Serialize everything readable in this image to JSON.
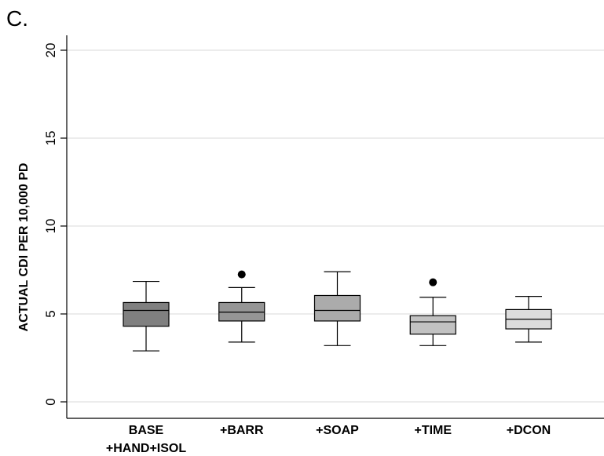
{
  "panel_label": "C.",
  "chart_data": {
    "type": "box",
    "ylabel": "ACTUAL CDI PER 10,000 PD",
    "xlabel": "",
    "ylim": [
      0,
      20
    ],
    "yticks": [
      0,
      5,
      10,
      15,
      20
    ],
    "grid": true,
    "categories": [
      [
        "BASE",
        "+HAND+ISOL"
      ],
      [
        "+BARR"
      ],
      [
        "+SOAP"
      ],
      [
        "+TIME"
      ],
      [
        "+DCON"
      ]
    ],
    "boxes": [
      {
        "whisker_low": 2.9,
        "q1": 4.3,
        "median": 5.2,
        "q3": 5.65,
        "whisker_high": 6.85,
        "outliers": [],
        "color": "#808080"
      },
      {
        "whisker_low": 3.4,
        "q1": 4.6,
        "median": 5.1,
        "q3": 5.65,
        "whisker_high": 6.5,
        "outliers": [
          7.25
        ],
        "color": "#959595"
      },
      {
        "whisker_low": 3.2,
        "q1": 4.6,
        "median": 5.2,
        "q3": 6.05,
        "whisker_high": 7.4,
        "outliers": [],
        "color": "#ababab"
      },
      {
        "whisker_low": 3.2,
        "q1": 3.85,
        "median": 4.55,
        "q3": 4.9,
        "whisker_high": 5.95,
        "outliers": [
          6.8
        ],
        "color": "#c2c2c2"
      },
      {
        "whisker_low": 3.4,
        "q1": 4.15,
        "median": 4.7,
        "q3": 5.25,
        "whisker_high": 6.0,
        "outliers": [],
        "color": "#dcdcdc"
      }
    ]
  }
}
